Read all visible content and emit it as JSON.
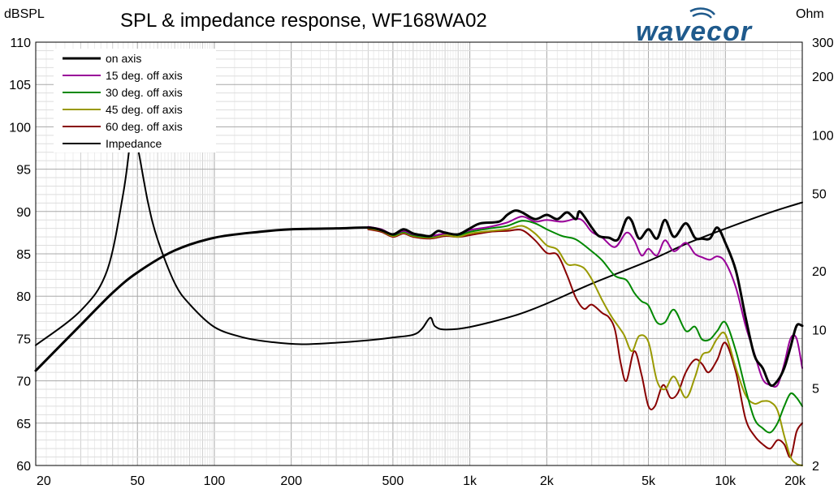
{
  "chart_data": {
    "type": "line",
    "title": "SPL & impedance response, WF168WA02",
    "brand": "wavecor",
    "brand_color": "#1f5a8c",
    "left_axis": {
      "label": "dBSPL",
      "range": [
        60,
        110
      ],
      "ticks": [
        "60",
        "65",
        "70",
        "75",
        "80",
        "85",
        "90",
        "95",
        "100",
        "105",
        "110"
      ]
    },
    "right_axis": {
      "label": "Ohm",
      "scale": "log",
      "range": [
        2,
        300
      ],
      "ticks": [
        {
          "value": 2,
          "label": "2"
        },
        {
          "value": 5,
          "label": "5"
        },
        {
          "value": 10,
          "label": "10"
        },
        {
          "value": 20,
          "label": "20"
        },
        {
          "value": 50,
          "label": "50"
        },
        {
          "value": 100,
          "label": "100"
        },
        {
          "value": 200,
          "label": "200"
        },
        {
          "value": 300,
          "label": "300"
        }
      ]
    },
    "x_axis": {
      "scale": "log",
      "range": [
        20,
        20000
      ],
      "ticks": [
        {
          "value": 20,
          "label": "20"
        },
        {
          "value": 50,
          "label": "50"
        },
        {
          "value": 100,
          "label": "100"
        },
        {
          "value": 200,
          "label": "200"
        },
        {
          "value": 500,
          "label": "500"
        },
        {
          "value": 1000,
          "label": "1k"
        },
        {
          "value": 2000,
          "label": "2k"
        },
        {
          "value": 5000,
          "label": "5k"
        },
        {
          "value": 10000,
          "label": "10k"
        },
        {
          "value": 20000,
          "label": "20k"
        }
      ]
    },
    "grid": true,
    "legend_position": "top-left",
    "series": [
      {
        "name": "on axis",
        "color": "#000000",
        "width": 3,
        "axis": "left",
        "points": [
          [
            20,
            71.2
          ],
          [
            30,
            76.6
          ],
          [
            40,
            80.4
          ],
          [
            50,
            82.8
          ],
          [
            70,
            85.4
          ],
          [
            100,
            86.9
          ],
          [
            150,
            87.6
          ],
          [
            200,
            87.9
          ],
          [
            300,
            88.0
          ],
          [
            400,
            88.1
          ],
          [
            450,
            87.8
          ],
          [
            500,
            87.3
          ],
          [
            550,
            87.9
          ],
          [
            600,
            87.4
          ],
          [
            650,
            87.2
          ],
          [
            700,
            87.1
          ],
          [
            750,
            87.7
          ],
          [
            800,
            87.5
          ],
          [
            900,
            87.3
          ],
          [
            1000,
            88.0
          ],
          [
            1100,
            88.6
          ],
          [
            1300,
            88.8
          ],
          [
            1400,
            89.6
          ],
          [
            1500,
            90.1
          ],
          [
            1600,
            89.9
          ],
          [
            1800,
            89.1
          ],
          [
            2000,
            89.6
          ],
          [
            2200,
            89.1
          ],
          [
            2400,
            89.9
          ],
          [
            2600,
            89.1
          ],
          [
            2700,
            90.0
          ],
          [
            3000,
            88.1
          ],
          [
            3200,
            87.1
          ],
          [
            3500,
            86.9
          ],
          [
            3800,
            86.7
          ],
          [
            4100,
            89.1
          ],
          [
            4300,
            88.9
          ],
          [
            4600,
            86.8
          ],
          [
            5000,
            87.9
          ],
          [
            5400,
            86.8
          ],
          [
            5800,
            89.0
          ],
          [
            6300,
            87.0
          ],
          [
            7000,
            88.6
          ],
          [
            7600,
            86.9
          ],
          [
            8100,
            86.8
          ],
          [
            8700,
            86.8
          ],
          [
            9300,
            88.1
          ],
          [
            10000,
            86.3
          ],
          [
            11000,
            83.0
          ],
          [
            12000,
            77.5
          ],
          [
            13000,
            73.0
          ],
          [
            14000,
            71.5
          ],
          [
            15000,
            69.5
          ],
          [
            16000,
            70.0
          ],
          [
            17000,
            71.5
          ],
          [
            18000,
            74.0
          ],
          [
            19000,
            76.5
          ],
          [
            20000,
            76.5
          ]
        ]
      },
      {
        "name": "15 deg. off axis",
        "color": "#990099",
        "width": 2,
        "axis": "left",
        "points": [
          [
            400,
            88.2
          ],
          [
            450,
            87.9
          ],
          [
            500,
            87.3
          ],
          [
            550,
            87.7
          ],
          [
            600,
            87.3
          ],
          [
            700,
            87.1
          ],
          [
            800,
            87.4
          ],
          [
            900,
            87.3
          ],
          [
            1000,
            87.8
          ],
          [
            1200,
            88.2
          ],
          [
            1400,
            88.7
          ],
          [
            1600,
            89.4
          ],
          [
            1800,
            88.8
          ],
          [
            2000,
            89.0
          ],
          [
            2300,
            88.8
          ],
          [
            2700,
            89.1
          ],
          [
            3000,
            87.6
          ],
          [
            3300,
            86.9
          ],
          [
            3700,
            85.8
          ],
          [
            4100,
            87.5
          ],
          [
            4400,
            86.6
          ],
          [
            4700,
            84.8
          ],
          [
            5000,
            85.6
          ],
          [
            5400,
            84.8
          ],
          [
            5800,
            86.6
          ],
          [
            6300,
            85.3
          ],
          [
            7000,
            86.3
          ],
          [
            7600,
            85.0
          ],
          [
            8100,
            84.6
          ],
          [
            8700,
            84.3
          ],
          [
            9300,
            84.7
          ],
          [
            10000,
            84.0
          ],
          [
            11000,
            81.0
          ],
          [
            12000,
            76.5
          ],
          [
            13000,
            73.2
          ],
          [
            14000,
            70.2
          ],
          [
            15000,
            69.5
          ],
          [
            16000,
            69.5
          ],
          [
            17000,
            72.0
          ],
          [
            18000,
            75.0
          ],
          [
            19000,
            75.0
          ],
          [
            20000,
            71.5
          ]
        ]
      },
      {
        "name": "30 deg. off axis",
        "color": "#008800",
        "width": 2,
        "axis": "left",
        "points": [
          [
            400,
            88.1
          ],
          [
            450,
            87.8
          ],
          [
            500,
            87.2
          ],
          [
            550,
            87.6
          ],
          [
            600,
            87.2
          ],
          [
            700,
            87.0
          ],
          [
            800,
            87.4
          ],
          [
            900,
            87.2
          ],
          [
            1000,
            87.6
          ],
          [
            1200,
            88.0
          ],
          [
            1400,
            88.3
          ],
          [
            1600,
            88.9
          ],
          [
            1800,
            88.6
          ],
          [
            2000,
            87.9
          ],
          [
            2300,
            87.1
          ],
          [
            2600,
            86.7
          ],
          [
            3000,
            85.3
          ],
          [
            3300,
            84.2
          ],
          [
            3700,
            82.4
          ],
          [
            4100,
            81.9
          ],
          [
            4400,
            80.4
          ],
          [
            4700,
            79.4
          ],
          [
            5000,
            78.9
          ],
          [
            5400,
            76.9
          ],
          [
            5800,
            76.9
          ],
          [
            6300,
            78.4
          ],
          [
            7000,
            75.9
          ],
          [
            7600,
            76.4
          ],
          [
            8100,
            74.9
          ],
          [
            8700,
            74.9
          ],
          [
            9300,
            75.9
          ],
          [
            10000,
            76.9
          ],
          [
            11000,
            73.5
          ],
          [
            12000,
            69.0
          ],
          [
            13000,
            65.5
          ],
          [
            14000,
            64.4
          ],
          [
            15000,
            63.9
          ],
          [
            16000,
            65.0
          ],
          [
            17000,
            67.0
          ],
          [
            18000,
            68.5
          ],
          [
            19000,
            68.0
          ],
          [
            20000,
            67.0
          ]
        ]
      },
      {
        "name": "45 deg. off axis",
        "color": "#999900",
        "width": 2,
        "axis": "left",
        "points": [
          [
            400,
            88.0
          ],
          [
            450,
            87.7
          ],
          [
            500,
            87.1
          ],
          [
            550,
            87.5
          ],
          [
            600,
            87.1
          ],
          [
            700,
            86.9
          ],
          [
            800,
            87.2
          ],
          [
            900,
            87.0
          ],
          [
            1000,
            87.4
          ],
          [
            1200,
            87.7
          ],
          [
            1400,
            87.9
          ],
          [
            1600,
            88.3
          ],
          [
            1800,
            87.4
          ],
          [
            2000,
            86.0
          ],
          [
            2200,
            85.5
          ],
          [
            2400,
            83.8
          ],
          [
            2600,
            83.7
          ],
          [
            2800,
            83.3
          ],
          [
            3000,
            82.0
          ],
          [
            3300,
            79.5
          ],
          [
            3600,
            77.5
          ],
          [
            4000,
            75.5
          ],
          [
            4300,
            73.5
          ],
          [
            4600,
            75.3
          ],
          [
            5000,
            74.6
          ],
          [
            5400,
            70.0
          ],
          [
            5800,
            69.0
          ],
          [
            6300,
            70.5
          ],
          [
            7000,
            68.0
          ],
          [
            7600,
            70.4
          ],
          [
            8100,
            73.0
          ],
          [
            8700,
            73.5
          ],
          [
            9300,
            75.0
          ],
          [
            10000,
            75.5
          ],
          [
            11000,
            71.5
          ],
          [
            12000,
            68.3
          ],
          [
            13000,
            67.3
          ],
          [
            14000,
            67.6
          ],
          [
            15000,
            67.5
          ],
          [
            16000,
            66.5
          ],
          [
            17000,
            63.5
          ],
          [
            18000,
            61.0
          ],
          [
            19000,
            60.2
          ],
          [
            20000,
            60.0
          ]
        ]
      },
      {
        "name": "60 deg. off axis",
        "color": "#880000",
        "width": 2,
        "axis": "left",
        "points": [
          [
            400,
            87.9
          ],
          [
            450,
            87.6
          ],
          [
            500,
            87.0
          ],
          [
            550,
            87.4
          ],
          [
            600,
            87.0
          ],
          [
            700,
            86.8
          ],
          [
            800,
            87.1
          ],
          [
            900,
            87.0
          ],
          [
            1000,
            87.2
          ],
          [
            1200,
            87.6
          ],
          [
            1400,
            87.7
          ],
          [
            1600,
            87.8
          ],
          [
            1800,
            86.6
          ],
          [
            2000,
            85.1
          ],
          [
            2200,
            84.9
          ],
          [
            2400,
            82.5
          ],
          [
            2600,
            79.8
          ],
          [
            2800,
            78.5
          ],
          [
            3000,
            79.0
          ],
          [
            3300,
            78.0
          ],
          [
            3500,
            77.5
          ],
          [
            3700,
            76.0
          ],
          [
            3900,
            72.0
          ],
          [
            4100,
            70.0
          ],
          [
            4400,
            73.5
          ],
          [
            4700,
            70.7
          ],
          [
            5000,
            67.0
          ],
          [
            5300,
            67.0
          ],
          [
            5700,
            69.5
          ],
          [
            6100,
            68.0
          ],
          [
            6500,
            68.5
          ],
          [
            7000,
            71.0
          ],
          [
            7600,
            72.5
          ],
          [
            8100,
            72.0
          ],
          [
            8600,
            71.0
          ],
          [
            9300,
            72.5
          ],
          [
            10000,
            74.5
          ],
          [
            11000,
            71.0
          ],
          [
            12000,
            65.5
          ],
          [
            13000,
            63.5
          ],
          [
            14000,
            62.5
          ],
          [
            15000,
            62.0
          ],
          [
            16000,
            63.0
          ],
          [
            17000,
            62.5
          ],
          [
            18000,
            61.0
          ],
          [
            19000,
            64.0
          ],
          [
            20000,
            65.0
          ]
        ]
      },
      {
        "name": "Impedance",
        "color": "#000000",
        "width": 2,
        "axis": "right",
        "points": [
          [
            20,
            8.3
          ],
          [
            30,
            12.5
          ],
          [
            38,
            20
          ],
          [
            44,
            50
          ],
          [
            47,
            95
          ],
          [
            48,
            100
          ],
          [
            50,
            88
          ],
          [
            55,
            45
          ],
          [
            60,
            29
          ],
          [
            70,
            17.3
          ],
          [
            80,
            13.5
          ],
          [
            100,
            10.3
          ],
          [
            130,
            9.1
          ],
          [
            170,
            8.6
          ],
          [
            220,
            8.4
          ],
          [
            300,
            8.55
          ],
          [
            400,
            8.8
          ],
          [
            500,
            9.1
          ],
          [
            600,
            9.4
          ],
          [
            650,
            10.1
          ],
          [
            700,
            11.5
          ],
          [
            730,
            10.4
          ],
          [
            800,
            10.0
          ],
          [
            1000,
            10.3
          ],
          [
            1500,
            11.8
          ],
          [
            2000,
            13.6
          ],
          [
            3000,
            17.2
          ],
          [
            5000,
            22.5
          ],
          [
            7000,
            27.5
          ],
          [
            10000,
            33
          ],
          [
            15000,
            40
          ],
          [
            20000,
            45
          ]
        ]
      }
    ]
  }
}
